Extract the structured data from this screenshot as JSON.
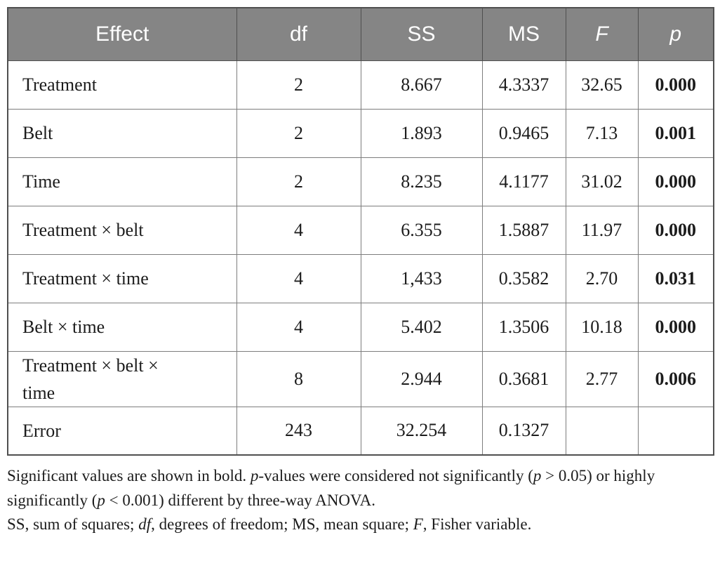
{
  "colors": {
    "header_bg": "#858585",
    "header_text": "#ffffff",
    "border_dark": "#4f4f4f",
    "border_light": "#7d7d7d",
    "text": "#1c1c1c"
  },
  "table": {
    "columns": [
      {
        "label": "Effect"
      },
      {
        "label": "df"
      },
      {
        "label": "SS"
      },
      {
        "label": "MS"
      },
      {
        "label": "F"
      },
      {
        "label": "p"
      }
    ],
    "rows": [
      {
        "effect": "Treatment",
        "df": "2",
        "ss": "8.667",
        "ms": "4.3337",
        "f": "32.65",
        "p": "0.000"
      },
      {
        "effect": "Belt",
        "df": "2",
        "ss": "1.893",
        "ms": "0.9465",
        "f": "7.13",
        "p": "0.001"
      },
      {
        "effect": "Time",
        "df": "2",
        "ss": "8.235",
        "ms": "4.1177",
        "f": "31.02",
        "p": "0.000"
      },
      {
        "effect": "Treatment × belt",
        "df": "4",
        "ss": "6.355",
        "ms": "1.5887",
        "f": "11.97",
        "p": "0.000"
      },
      {
        "effect": "Treatment × time",
        "df": "4",
        "ss": "1,433",
        "ms": "0.3582",
        "f": "2.70",
        "p": "0.031"
      },
      {
        "effect": "Belt × time",
        "df": "4",
        "ss": "5.402",
        "ms": "1.3506",
        "f": "10.18",
        "p": "0.000"
      },
      {
        "effect": "Treatment × belt ×\ntime",
        "df": "8",
        "ss": "2.944",
        "ms": "0.3681",
        "f": "2.77",
        "p": "0.006"
      },
      {
        "effect": "Error",
        "df": "243",
        "ss": "32.254",
        "ms": "0.1327",
        "f": "",
        "p": ""
      }
    ]
  },
  "footnotes": {
    "significance": [
      {
        "t": "Significant values are shown in bold. "
      },
      {
        "t": "p",
        "i": true
      },
      {
        "t": "-values were considered not significantly ("
      },
      {
        "t": "p",
        "i": true
      },
      {
        "t": " > 0.05) or highly significantly ("
      },
      {
        "t": "p",
        "i": true
      },
      {
        "t": " < 0.001) different by three-way ANOVA."
      }
    ],
    "abbreviations": [
      {
        "t": "SS, sum of squares; "
      },
      {
        "t": "df",
        "i": true
      },
      {
        "t": ", degrees of freedom; MS, mean square; "
      },
      {
        "t": "F",
        "i": true
      },
      {
        "t": ", Fisher variable."
      }
    ]
  }
}
